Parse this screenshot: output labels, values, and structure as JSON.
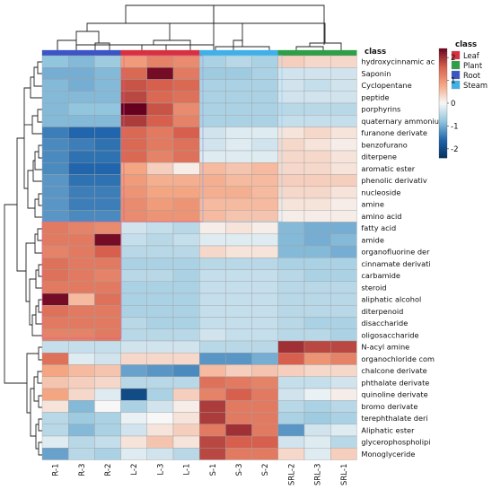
{
  "chart_data": {
    "type": "heatmap",
    "columns": [
      "R-1",
      "R-3",
      "R-2",
      "L-2",
      "L-3",
      "L-1",
      "S-1",
      "S-3",
      "S-2",
      "SRL-2",
      "SRL-3",
      "SRL-1"
    ],
    "column_classes": [
      "Root",
      "Root",
      "Root",
      "Leaf",
      "Leaf",
      "Leaf",
      "Steam",
      "Steam",
      "Steam",
      "Plant",
      "Plant",
      "Plant"
    ],
    "rows": [
      "hydroxycinnamic ac",
      "Saponin",
      "Cyclopentane",
      "peptide",
      "porphyrins",
      "quaternary ammoniu",
      "furanone derivate",
      "benzofurano",
      "diterpene",
      "aromatic ester",
      "phenolic derivativ",
      "nucleoside",
      "amine",
      "amino acid",
      "fatty acid",
      "amide",
      "organofluorine der",
      "cinnamate derivati",
      "carbamide",
      "steroid",
      "aliphatic alcohol",
      "diterpenoid",
      "disaccharide",
      "oligosaccharide",
      "N-acyl amine",
      "organochloride com",
      "chalcone derivate",
      "phthalate derivate",
      "quinoline derivate",
      "bromo derivate",
      "terephthalate deri",
      "Aliphatic ester",
      "glycerophospholipi",
      "Monoglyceride"
    ],
    "values": [
      [
        -0.8,
        -0.9,
        -0.7,
        0.9,
        1.2,
        1.1,
        -0.6,
        -0.5,
        -0.6,
        0.4,
        0.3,
        0.3
      ],
      [
        -1.0,
        -1.0,
        -0.9,
        1.5,
        2.3,
        1.3,
        -0.7,
        -0.7,
        -0.6,
        -0.3,
        -0.3,
        -0.3
      ],
      [
        -0.9,
        -1.0,
        -0.9,
        1.7,
        1.6,
        1.5,
        -0.6,
        -0.6,
        -0.6,
        -0.3,
        -0.4,
        -0.3
      ],
      [
        -0.9,
        -0.9,
        -0.9,
        1.8,
        1.5,
        1.4,
        -0.6,
        -0.6,
        -0.6,
        -0.3,
        -0.3,
        -0.3
      ],
      [
        -0.9,
        -0.8,
        -0.8,
        2.4,
        1.7,
        1.1,
        -0.6,
        -0.6,
        -0.6,
        -0.5,
        -0.5,
        -0.5
      ],
      [
        -0.9,
        -0.9,
        -0.9,
        1.9,
        1.6,
        1.2,
        -0.6,
        -0.6,
        -0.6,
        -0.4,
        -0.4,
        -0.4
      ],
      [
        -1.4,
        -1.6,
        -1.6,
        1.5,
        1.3,
        1.6,
        -0.3,
        -0.2,
        -0.2,
        0.2,
        0.3,
        0.2
      ],
      [
        -1.3,
        -1.4,
        -1.5,
        1.5,
        1.3,
        1.4,
        -0.3,
        -0.2,
        -0.3,
        0.3,
        0.2,
        0.1
      ],
      [
        -1.3,
        -1.5,
        -1.5,
        1.5,
        1.2,
        1.4,
        -0.2,
        -0.2,
        -0.2,
        0.3,
        0.3,
        0.2
      ],
      [
        -1.3,
        -1.6,
        -1.6,
        0.8,
        0.4,
        0.1,
        0.6,
        0.5,
        0.6,
        0.3,
        0.3,
        0.2
      ],
      [
        -1.2,
        -1.5,
        -1.5,
        0.9,
        0.7,
        0.7,
        0.7,
        0.6,
        0.6,
        0.4,
        0.4,
        0.4
      ],
      [
        -1.2,
        -1.4,
        -1.4,
        1.0,
        0.8,
        0.8,
        0.7,
        0.7,
        0.6,
        0.3,
        0.3,
        0.2
      ],
      [
        -1.2,
        -1.4,
        -1.4,
        1.1,
        0.9,
        1.0,
        0.6,
        0.6,
        0.6,
        0.2,
        0.2,
        0.1
      ],
      [
        -1.2,
        -1.3,
        -1.3,
        1.1,
        1.0,
        1.0,
        0.6,
        0.5,
        0.5,
        0.1,
        0.1,
        0.1
      ],
      [
        1.3,
        1.2,
        1.1,
        -0.3,
        -0.4,
        -0.5,
        0.1,
        0.2,
        0.1,
        -0.9,
        -1.0,
        -1.0
      ],
      [
        1.3,
        1.3,
        2.3,
        -0.4,
        -0.5,
        -0.4,
        -0.2,
        -0.2,
        -0.2,
        -0.9,
        -1.0,
        -0.9
      ],
      [
        1.2,
        1.3,
        1.6,
        -0.5,
        -0.5,
        -0.5,
        0.3,
        0.2,
        0.2,
        -0.9,
        -0.9,
        -1.0
      ],
      [
        1.4,
        1.3,
        1.3,
        -0.6,
        -0.6,
        -0.6,
        -0.5,
        -0.5,
        -0.5,
        -0.6,
        -0.6,
        -0.6
      ],
      [
        1.4,
        1.3,
        1.2,
        -0.5,
        -0.5,
        -0.6,
        -0.4,
        -0.4,
        -0.4,
        -0.5,
        -0.6,
        -0.6
      ],
      [
        1.3,
        1.3,
        1.3,
        -0.6,
        -0.6,
        -0.6,
        -0.4,
        -0.4,
        -0.4,
        -0.5,
        -0.5,
        -0.5
      ],
      [
        2.3,
        0.6,
        1.4,
        -0.6,
        -0.6,
        -0.6,
        -0.4,
        -0.4,
        -0.4,
        -0.5,
        -0.5,
        -0.5
      ],
      [
        1.4,
        1.3,
        1.3,
        -0.6,
        -0.6,
        -0.6,
        -0.4,
        -0.4,
        -0.4,
        -0.5,
        -0.5,
        -0.5
      ],
      [
        1.3,
        1.3,
        1.3,
        -0.5,
        -0.6,
        -0.6,
        -0.4,
        -0.4,
        -0.4,
        -0.5,
        -0.6,
        -0.6
      ],
      [
        1.2,
        1.2,
        1.3,
        -0.5,
        -0.5,
        -0.5,
        -0.3,
        -0.4,
        -0.4,
        -0.5,
        -0.5,
        -0.6
      ],
      [
        -0.4,
        -0.4,
        -0.4,
        -0.3,
        -0.3,
        -0.3,
        -0.5,
        -0.5,
        -0.5,
        2.0,
        1.8,
        1.8
      ],
      [
        1.4,
        -0.2,
        -0.3,
        0.3,
        0.3,
        0.3,
        -1.2,
        -1.2,
        -1.0,
        1.6,
        1.0,
        1.2
      ],
      [
        0.8,
        0.6,
        0.5,
        -1.1,
        -1.2,
        -1.3,
        0.6,
        0.4,
        0.5,
        0.4,
        0.3,
        0.3
      ],
      [
        0.5,
        0.4,
        0.3,
        -0.5,
        -0.5,
        -0.5,
        1.4,
        1.3,
        1.2,
        -0.4,
        -0.4,
        -0.3
      ],
      [
        0.8,
        0.3,
        -0.2,
        -2.0,
        -0.6,
        0.4,
        1.2,
        1.6,
        1.3,
        -0.3,
        -0.1,
        0.1
      ],
      [
        0.2,
        -0.9,
        0.0,
        -0.6,
        -0.3,
        0.1,
        1.9,
        1.3,
        1.3,
        -0.5,
        -0.6,
        -0.5
      ],
      [
        -0.5,
        -0.7,
        -0.6,
        -0.1,
        0.0,
        0.2,
        1.9,
        1.3,
        1.3,
        -0.6,
        -0.7,
        -0.6
      ],
      [
        -0.5,
        -0.9,
        -0.6,
        -0.3,
        0.2,
        0.4,
        1.3,
        2.0,
        1.3,
        -1.2,
        -0.3,
        -0.2
      ],
      [
        -0.2,
        -0.5,
        -0.4,
        0.2,
        0.5,
        0.2,
        1.8,
        1.6,
        1.6,
        -0.3,
        -0.2,
        -0.5
      ],
      [
        -1.1,
        -0.5,
        -0.6,
        -0.2,
        -0.3,
        -0.5,
        1.8,
        1.3,
        1.3,
        0.3,
        -0.2,
        0.4
      ]
    ],
    "color_range": [
      -2.4,
      2.4
    ],
    "colorbar_ticks": [
      2,
      1,
      0,
      -1,
      -2
    ],
    "class_title": "class",
    "legend_title": "class",
    "legend_items": [
      {
        "label": "Leaf",
        "color": "#d9303f"
      },
      {
        "label": "Plant",
        "color": "#2e9e47"
      },
      {
        "label": "Root",
        "color": "#3b55c4"
      },
      {
        "label": "Steam",
        "color": "#3fb0e8"
      }
    ],
    "class_colors": {
      "Leaf": "#d9303f",
      "Plant": "#2e9e47",
      "Root": "#3b55c4",
      "Steam": "#3fb0e8"
    }
  }
}
